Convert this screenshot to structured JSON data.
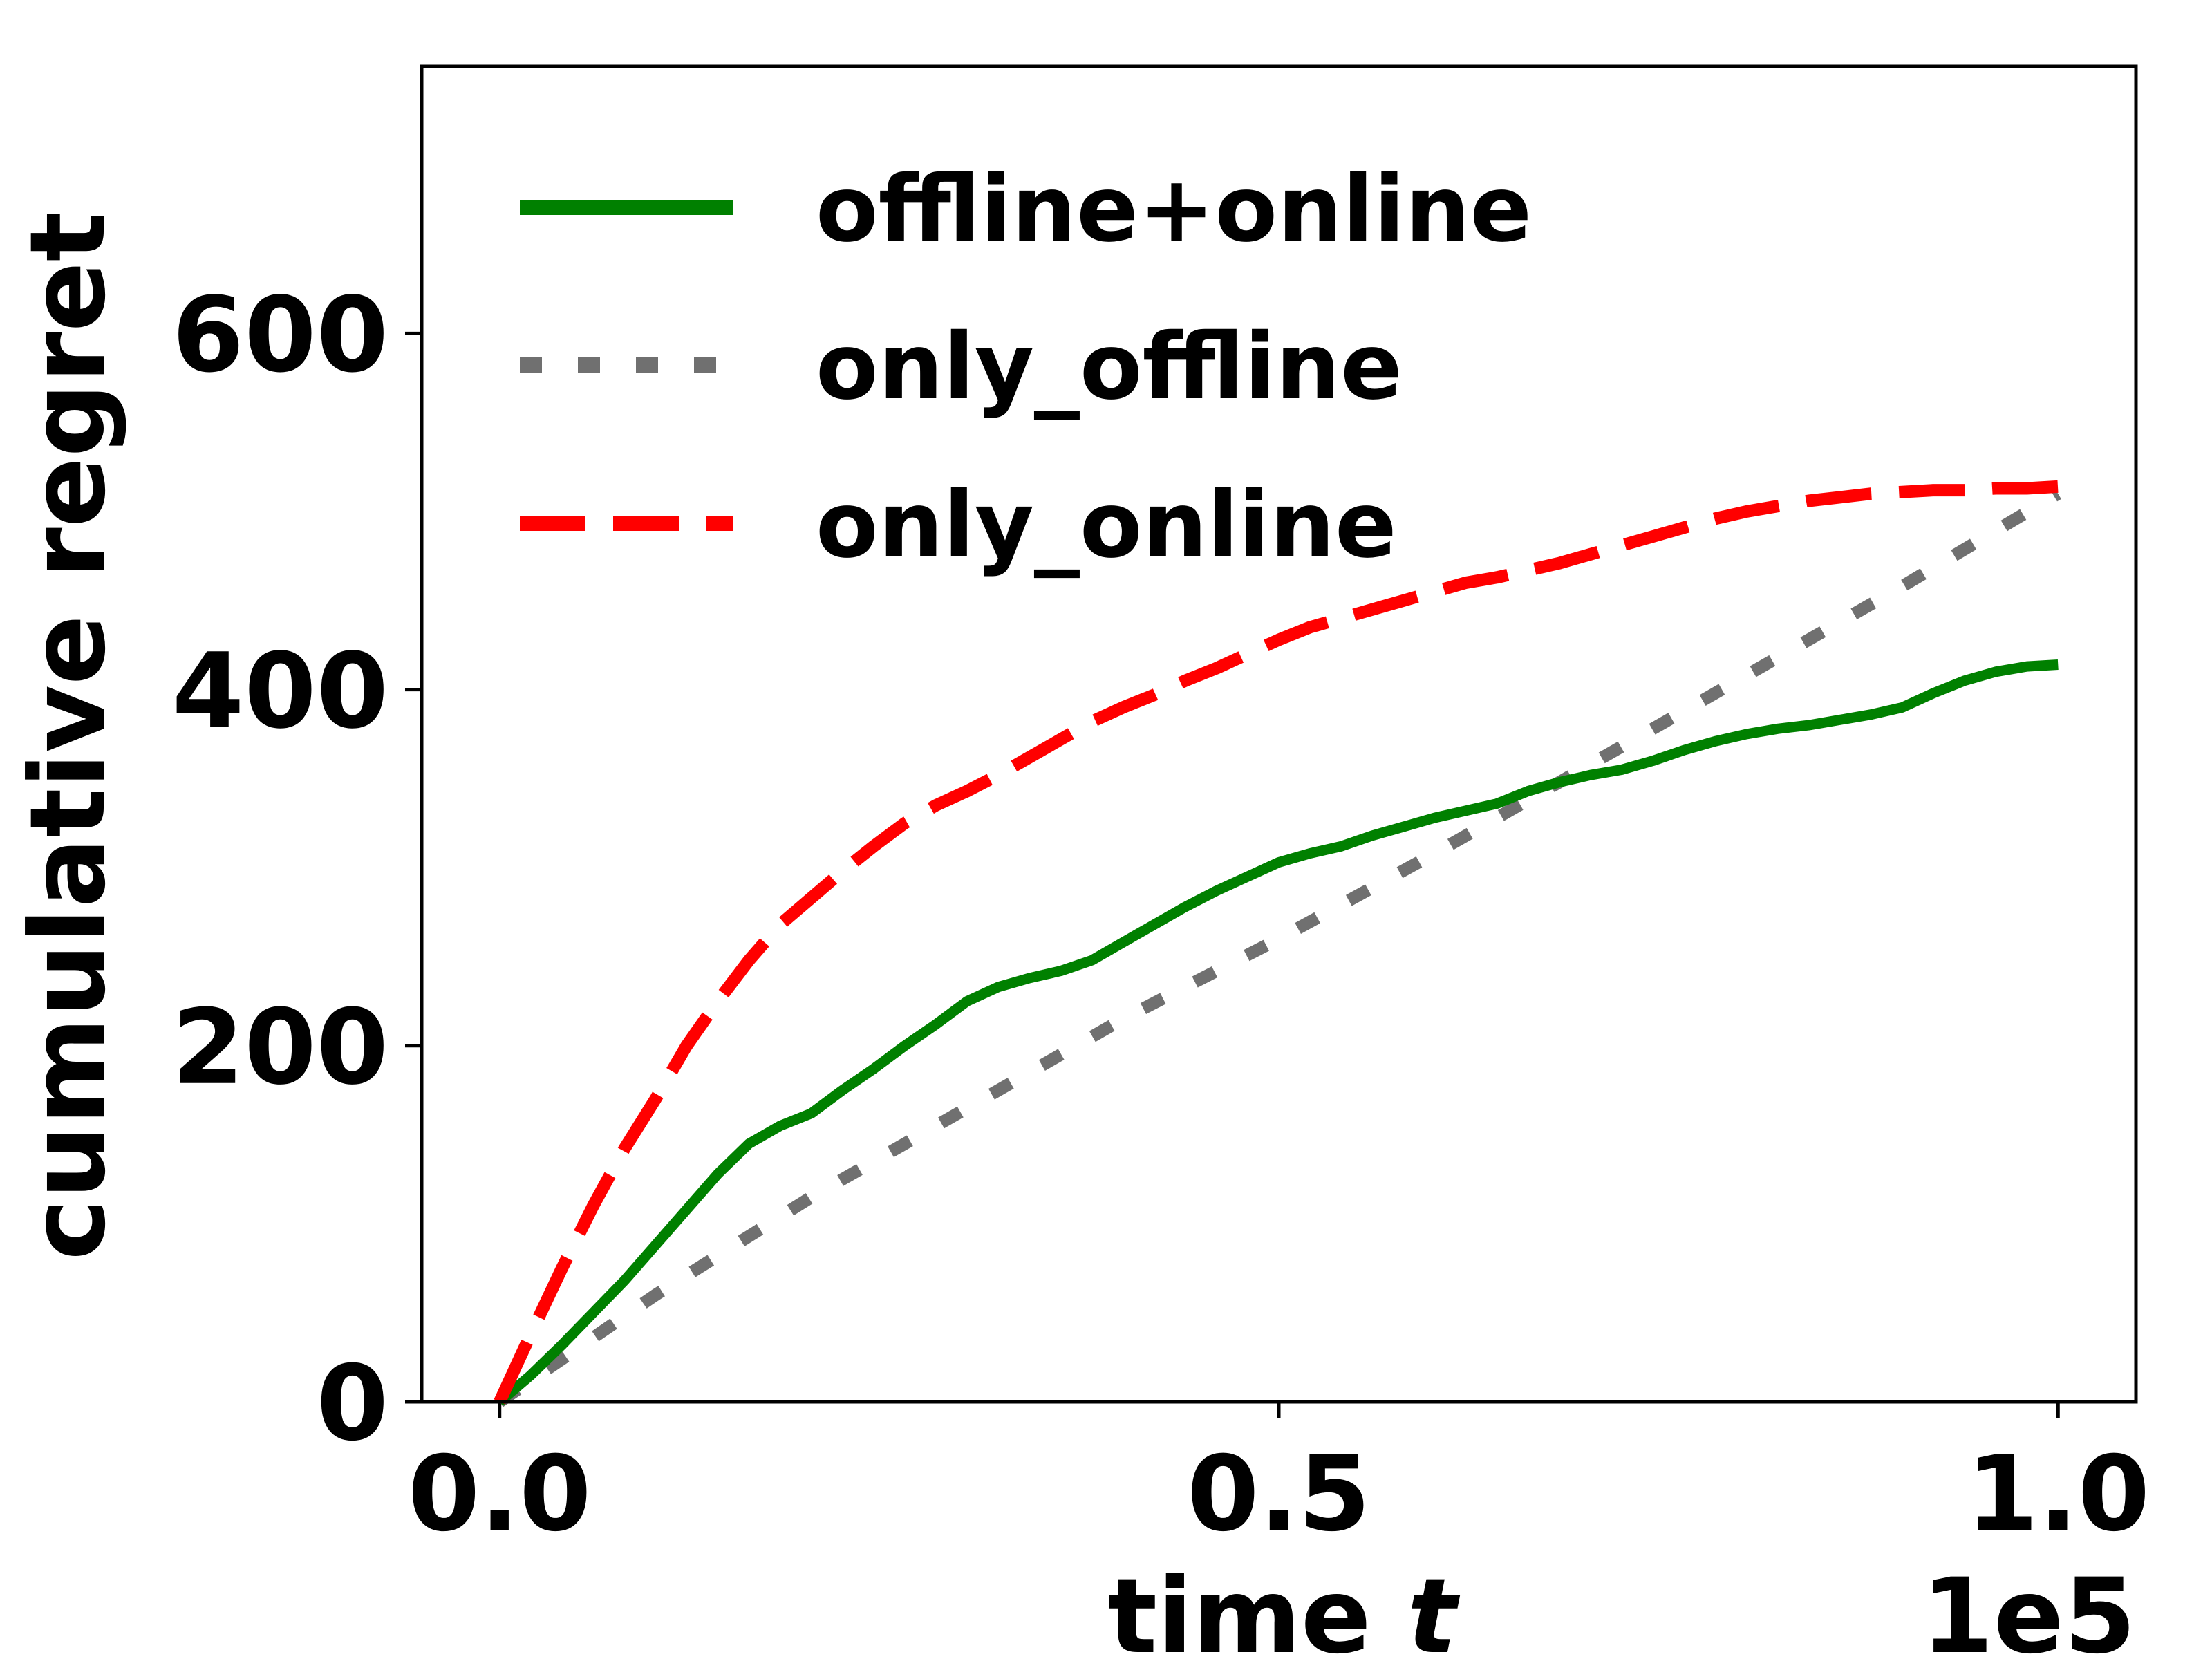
{
  "chart_data": {
    "type": "line",
    "title": "",
    "xlabel": "time",
    "xlabel_var": "t",
    "ylabel": "cumulative regret",
    "x_offset_label": "1e5",
    "xlim": [
      -0.05,
      1.05
    ],
    "ylim": [
      0,
      750
    ],
    "xticks": [
      0.0,
      0.5,
      1.0
    ],
    "xtick_labels": [
      "0.0",
      "0.5",
      "1.0"
    ],
    "yticks": [
      0,
      200,
      400,
      600
    ],
    "ytick_labels": [
      "0",
      "200",
      "400",
      "600"
    ],
    "grid": false,
    "legend_position": "upper-left",
    "series": [
      {
        "name": "offline+online",
        "color": "#008000",
        "style": "solid",
        "x": [
          0.0,
          0.02,
          0.04,
          0.06,
          0.08,
          0.1,
          0.12,
          0.14,
          0.16,
          0.18,
          0.2,
          0.22,
          0.24,
          0.26,
          0.28,
          0.3,
          0.32,
          0.34,
          0.36,
          0.38,
          0.4,
          0.42,
          0.44,
          0.46,
          0.48,
          0.5,
          0.52,
          0.54,
          0.56,
          0.58,
          0.6,
          0.62,
          0.64,
          0.66,
          0.68,
          0.7,
          0.72,
          0.74,
          0.76,
          0.78,
          0.8,
          0.82,
          0.84,
          0.86,
          0.88,
          0.9,
          0.92,
          0.94,
          0.96,
          0.98,
          1.0
        ],
        "y": [
          0,
          15,
          32,
          50,
          68,
          88,
          108,
          128,
          145,
          155,
          162,
          175,
          187,
          200,
          212,
          225,
          233,
          238,
          242,
          248,
          258,
          268,
          278,
          287,
          295,
          303,
          308,
          312,
          318,
          323,
          328,
          332,
          336,
          343,
          348,
          352,
          355,
          360,
          366,
          371,
          375,
          378,
          380,
          383,
          386,
          390,
          398,
          405,
          410,
          413,
          414
        ]
      },
      {
        "name": "only_offline",
        "color": "#707070",
        "style": "dotted",
        "x": [
          0.0,
          0.1,
          0.2,
          0.3,
          0.4,
          0.5,
          0.6,
          0.7,
          0.8,
          0.9,
          1.0
        ],
        "y": [
          0,
          60,
          115,
          165,
          215,
          260,
          308,
          358,
          408,
          458,
          510
        ]
      },
      {
        "name": "only_online",
        "color": "#ff0000",
        "style": "dashed",
        "x": [
          0.0,
          0.02,
          0.04,
          0.06,
          0.08,
          0.1,
          0.12,
          0.14,
          0.16,
          0.18,
          0.2,
          0.22,
          0.24,
          0.26,
          0.28,
          0.3,
          0.32,
          0.34,
          0.36,
          0.38,
          0.4,
          0.42,
          0.44,
          0.46,
          0.48,
          0.5,
          0.52,
          0.54,
          0.56,
          0.58,
          0.6,
          0.62,
          0.64,
          0.66,
          0.68,
          0.7,
          0.72,
          0.74,
          0.76,
          0.78,
          0.8,
          0.82,
          0.84,
          0.86,
          0.88,
          0.9,
          0.92,
          0.94,
          0.96,
          0.98,
          1.0
        ],
        "y": [
          0,
          38,
          75,
          110,
          142,
          170,
          200,
          225,
          248,
          268,
          283,
          298,
          312,
          325,
          335,
          343,
          352,
          362,
          372,
          382,
          390,
          397,
          405,
          412,
          420,
          428,
          435,
          440,
          445,
          450,
          455,
          460,
          463,
          467,
          471,
          476,
          481,
          486,
          491,
          496,
          500,
          503,
          506,
          508,
          510,
          511,
          512,
          512,
          513,
          513,
          514
        ]
      }
    ]
  }
}
